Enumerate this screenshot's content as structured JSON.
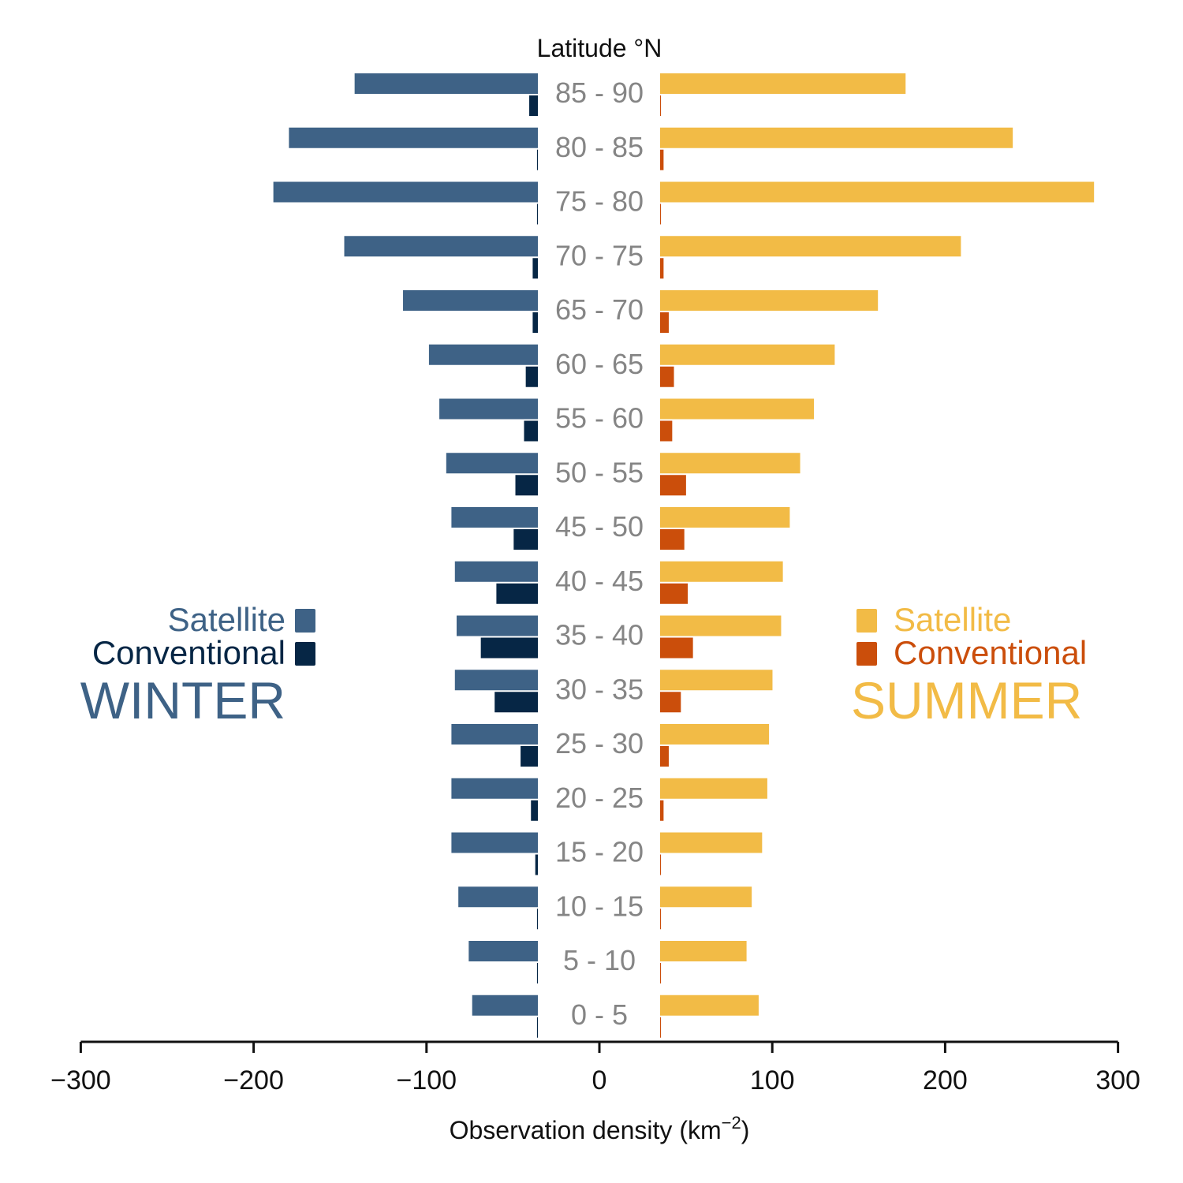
{
  "chart_data": {
    "type": "bar",
    "orientation": "horizontal",
    "layout": "diverging",
    "categories_title": "Latitude °N",
    "categories": [
      "85 - 90",
      "80 - 85",
      "75 - 80",
      "70 - 75",
      "65 - 70",
      "60 - 65",
      "55 - 60",
      "50 - 55",
      "45 - 50",
      "40 - 45",
      "35 - 40",
      "30 - 35",
      "25 - 30",
      "20 - 25",
      "15 - 20",
      "10 - 15",
      "5 - 10",
      "0 - 5"
    ],
    "xlabel": "Observation density (km",
    "xlabel_exponent": "−2",
    "xlabel_close": ")",
    "xlim": [
      -300,
      300
    ],
    "xticks": [
      -300,
      -200,
      -100,
      0,
      100,
      200,
      300
    ],
    "xtick_labels": [
      "−300",
      "−200",
      "−100",
      "0",
      "100",
      "200",
      "300"
    ],
    "grid": false,
    "groups": [
      {
        "name": "WINTER",
        "side": "left",
        "legend_placement": "left",
        "series": [
          {
            "name": "Satellite",
            "color": "#3e6286",
            "values": [
              -106,
              -144,
              -153,
              -112,
              -78,
              -63,
              -57,
              -53,
              -50,
              -48,
              -47,
              -48,
              -50,
              -50,
              -50,
              -46,
              -40,
              -38
            ]
          },
          {
            "name": "Conventional",
            "color": "#062645",
            "values": [
              -5,
              -0.5,
              -0.5,
              -3,
              -3,
              -7,
              -8,
              -13,
              -14,
              -24,
              -33,
              -25,
              -10,
              -4,
              -1.5,
              -0.5,
              -0.5,
              -0.5
            ]
          }
        ]
      },
      {
        "name": "SUMMER",
        "side": "right",
        "legend_placement": "right",
        "series": [
          {
            "name": "Satellite",
            "color": "#f2bb46",
            "values": [
              142,
              204,
              251,
              174,
              126,
              101,
              89,
              81,
              75,
              71,
              70,
              65,
              63,
              62,
              59,
              53,
              50,
              57
            ]
          },
          {
            "name": "Conventional",
            "color": "#cb4e0b",
            "values": [
              0.5,
              2,
              0.5,
              2,
              5,
              8,
              7,
              15,
              14,
              16,
              19,
              12,
              5,
              2,
              0.5,
              0.5,
              0.5,
              0.5
            ]
          }
        ]
      }
    ]
  }
}
